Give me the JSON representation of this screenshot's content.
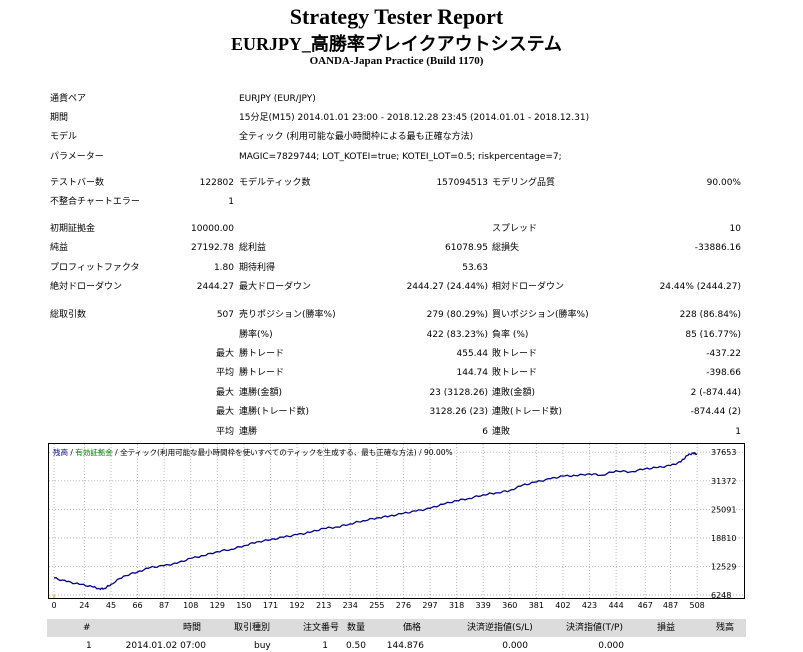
{
  "header": {
    "title": "Strategy Tester Report",
    "subtitle": "EURJPY_高勝率ブレイクアウトシステム",
    "server": "OANDA-Japan Practice (Build 1170)"
  },
  "info": {
    "pair_label": "通貨ペア",
    "pair_value": "EURJPY (EUR/JPY)",
    "period_label": "期間",
    "period_value": "15分足(M15) 2014.01.01 23:00 - 2018.12.28 23:45 (2014.01.01 - 2018.12.31)",
    "model_label": "モデル",
    "model_value": "全ティック (利用可能な最小時間枠による最も正確な方法)",
    "params_label": "パラメーター",
    "params_value": "MAGIC=7829744; LOT_KOTEI=true; KOTEI_LOT=0.5; riskpercentage=7;"
  },
  "stats": {
    "bars_label": "テストバー数",
    "bars_value": "122802",
    "ticks_label": "モデルティック数",
    "ticks_value": "157094513",
    "quality_label": "モデリング品質",
    "quality_value": "90.00%",
    "errors_label": "不整合チャートエラー",
    "errors_value": "1",
    "deposit_label": "初期証拠金",
    "deposit_value": "10000.00",
    "spread_label": "スプレッド",
    "spread_value": "10",
    "net_label": "純益",
    "net_value": "27192.78",
    "gross_profit_label": "総利益",
    "gross_profit_value": "61078.95",
    "gross_loss_label": "総損失",
    "gross_loss_value": "-33886.16",
    "pf_label": "プロフィットファクタ",
    "pf_value": "1.80",
    "expected_label": "期待利得",
    "expected_value": "53.63",
    "abs_dd_label": "絶対ドローダウン",
    "abs_dd_value": "2444.27",
    "max_dd_label": "最大ドローダウン",
    "max_dd_value": "2444.27 (24.44%)",
    "rel_dd_label": "相対ドローダウン",
    "rel_dd_value": "24.44% (2444.27)",
    "total_label": "総取引数",
    "total_value": "507",
    "short_label": "売りポジション(勝率%)",
    "short_value": "279 (80.29%)",
    "long_label": "買いポジション(勝率%)",
    "long_value": "228 (86.84%)",
    "winrate_label": "勝率(%)",
    "winrate_value": "422 (83.23%)",
    "lossrate_label": "負率 (%)",
    "lossrate_value": "85 (16.77%)",
    "max_word": "最大",
    "avg_word": "平均",
    "win_trade_label": "勝トレード",
    "loss_trade_label": "敗トレード",
    "max_win_value": "455.44",
    "max_loss_value": "-437.22",
    "avg_win_value": "144.74",
    "avg_loss_value": "-398.66",
    "consec_win_amt_label": "連勝(金額)",
    "consec_win_amt_value": "23 (3128.26)",
    "consec_loss_amt_label": "連敗(金額)",
    "consec_loss_amt_value": "2 (-874.44)",
    "consec_win_tr_label": "連勝(トレード数)",
    "consec_win_tr_value": "3128.26 (23)",
    "consec_loss_tr_label": "連敗(トレード数)",
    "consec_loss_tr_value": "-874.44 (2)",
    "avg_win_streak_label": "連勝",
    "avg_win_streak_value": "6",
    "avg_loss_streak_label": "連敗",
    "avg_loss_streak_value": "1"
  },
  "chart_data": {
    "type": "line",
    "legend_balance": "残高",
    "legend_equity": "有効証拠金",
    "legend_rest": "全ティック(利用可能な最小時間枠を使いすべてのティックを生成する、最も正確な方法) / 90.00%",
    "x_ticks": [
      0,
      24,
      45,
      66,
      87,
      108,
      129,
      150,
      171,
      192,
      213,
      234,
      255,
      276,
      297,
      318,
      339,
      360,
      381,
      402,
      423,
      444,
      467,
      487,
      508
    ],
    "y_ticks": [
      37653,
      31372,
      25091,
      18810,
      12529,
      6248
    ],
    "xlim": [
      0,
      515
    ],
    "ylim": [
      6248,
      38800
    ],
    "grid": true,
    "series": [
      {
        "name": "残高",
        "color": "#00008b",
        "x": [
          0,
          10,
          20,
          30,
          36,
          40,
          45,
          55,
          66,
          76,
          87,
          97,
          108,
          118,
          129,
          140,
          150,
          160,
          171,
          182,
          192,
          202,
          213,
          224,
          234,
          244,
          255,
          265,
          276,
          286,
          297,
          307,
          318,
          328,
          339,
          349,
          360,
          370,
          381,
          392,
          402,
          412,
          423,
          433,
          444,
          455,
          467,
          477,
          487,
          495,
          500,
          505,
          508
        ],
        "y": [
          10000,
          9200,
          8600,
          8100,
          7600,
          7700,
          8600,
          10400,
          11300,
          12300,
          12700,
          13200,
          14300,
          14900,
          15800,
          16300,
          17100,
          17900,
          18400,
          19000,
          19500,
          20000,
          20900,
          21200,
          21900,
          22600,
          23200,
          23600,
          24200,
          24700,
          25300,
          26200,
          27000,
          27500,
          28300,
          28700,
          29200,
          30400,
          31100,
          31800,
          32400,
          32500,
          32900,
          32600,
          33600,
          33300,
          34000,
          34300,
          34700,
          35500,
          36900,
          37500,
          37200
        ]
      }
    ],
    "marker_color": "#ffd21e"
  },
  "table": {
    "headers": [
      "#",
      "時間",
      "取引種別",
      "注文番号",
      "数量",
      "価格",
      "決済逆指値(S/L)",
      "決済指値(T/P)",
      "損益",
      "残高"
    ],
    "rows": [
      [
        "1",
        "2014.01.02 07:00",
        "buy",
        "1",
        "0.50",
        "144.876",
        "0.000",
        "0.000",
        "",
        ""
      ]
    ]
  }
}
